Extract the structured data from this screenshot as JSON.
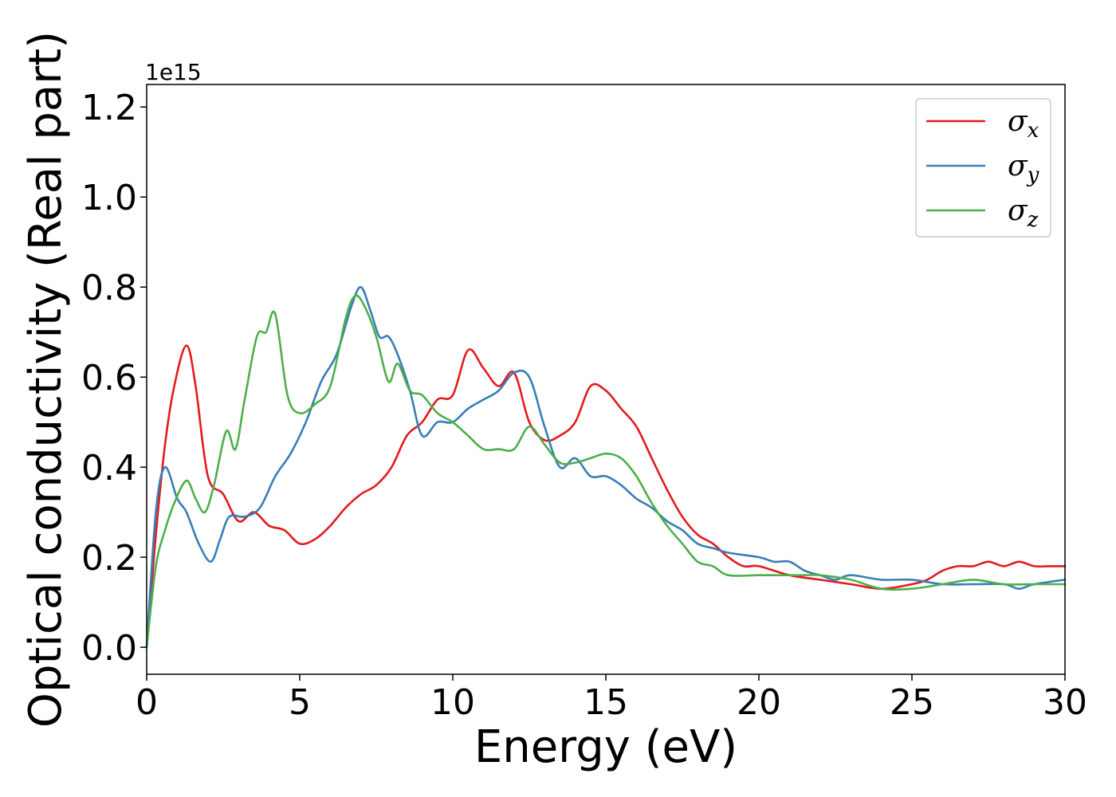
{
  "chart_data": {
    "type": "line",
    "xlabel": "Energy (eV)",
    "ylabel": "Optical conductivity (Real part)",
    "y_offset_label": "1e15",
    "xlim": [
      0,
      30
    ],
    "ylim": [
      -0.06,
      1.25
    ],
    "x_ticks": [
      0,
      5,
      10,
      15,
      20,
      25,
      30
    ],
    "x_tick_labels": [
      "0",
      "5",
      "10",
      "15",
      "20",
      "25",
      "30"
    ],
    "y_ticks": [
      0.0,
      0.2,
      0.4,
      0.6,
      0.8,
      1.0,
      1.2
    ],
    "y_tick_labels": [
      "0.0",
      "0.2",
      "0.4",
      "0.6",
      "0.8",
      "1.0",
      "1.2"
    ],
    "grid": false,
    "legend_position": "top-right",
    "series": [
      {
        "name": "σx",
        "symbol": "σ",
        "subscript": "x",
        "color": "#e41a1c",
        "x": [
          0,
          0.3,
          0.6,
          0.9,
          1.3,
          1.6,
          2.0,
          2.5,
          3.0,
          3.5,
          4.0,
          4.5,
          5.0,
          5.5,
          6.0,
          6.5,
          7.0,
          7.5,
          8.0,
          8.5,
          9.0,
          9.5,
          10.0,
          10.5,
          11.0,
          11.5,
          12.0,
          12.5,
          13.0,
          13.5,
          14.0,
          14.5,
          15.0,
          15.5,
          16.0,
          16.5,
          17.0,
          17.5,
          18.0,
          18.5,
          19.0,
          19.5,
          20.0,
          21.0,
          22.0,
          23.0,
          24.0,
          25.0,
          25.5,
          26.0,
          26.5,
          27.0,
          27.5,
          28.0,
          28.5,
          29.0,
          29.5,
          30.0
        ],
        "y": [
          0.0,
          0.25,
          0.45,
          0.58,
          0.67,
          0.58,
          0.38,
          0.34,
          0.28,
          0.3,
          0.27,
          0.26,
          0.23,
          0.24,
          0.27,
          0.31,
          0.34,
          0.36,
          0.4,
          0.47,
          0.5,
          0.55,
          0.56,
          0.66,
          0.62,
          0.58,
          0.61,
          0.5,
          0.46,
          0.47,
          0.5,
          0.58,
          0.57,
          0.53,
          0.49,
          0.42,
          0.35,
          0.29,
          0.25,
          0.23,
          0.2,
          0.18,
          0.18,
          0.16,
          0.15,
          0.14,
          0.13,
          0.14,
          0.15,
          0.17,
          0.18,
          0.18,
          0.19,
          0.18,
          0.19,
          0.18,
          0.18,
          0.18
        ]
      },
      {
        "name": "σy",
        "symbol": "σ",
        "subscript": "y",
        "color": "#377eb8",
        "x": [
          0,
          0.3,
          0.6,
          1.0,
          1.3,
          1.7,
          2.1,
          2.4,
          2.7,
          3.2,
          3.7,
          4.2,
          4.7,
          5.2,
          5.7,
          6.2,
          6.7,
          7.0,
          7.3,
          7.6,
          7.9,
          8.2,
          8.6,
          9.0,
          9.5,
          10.0,
          10.5,
          11.0,
          11.5,
          12.0,
          12.5,
          13.0,
          13.5,
          14.0,
          14.5,
          15.0,
          15.5,
          16.0,
          16.5,
          17.0,
          17.5,
          18.0,
          18.5,
          19.0,
          20.0,
          20.5,
          21.0,
          21.5,
          22.0,
          22.5,
          23.0,
          24.0,
          25.0,
          26.0,
          27.0,
          28.0,
          28.5,
          29.0,
          30.0
        ],
        "y": [
          0.0,
          0.3,
          0.4,
          0.33,
          0.3,
          0.23,
          0.19,
          0.24,
          0.29,
          0.29,
          0.31,
          0.38,
          0.43,
          0.5,
          0.59,
          0.65,
          0.76,
          0.8,
          0.75,
          0.69,
          0.69,
          0.65,
          0.57,
          0.47,
          0.5,
          0.5,
          0.53,
          0.55,
          0.57,
          0.61,
          0.6,
          0.49,
          0.4,
          0.42,
          0.38,
          0.38,
          0.36,
          0.33,
          0.31,
          0.28,
          0.26,
          0.23,
          0.22,
          0.21,
          0.2,
          0.19,
          0.19,
          0.17,
          0.16,
          0.15,
          0.16,
          0.15,
          0.15,
          0.14,
          0.14,
          0.14,
          0.13,
          0.14,
          0.15
        ]
      },
      {
        "name": "σz",
        "symbol": "σ",
        "subscript": "z",
        "color": "#4daf4a",
        "x": [
          0,
          0.3,
          0.6,
          0.9,
          1.3,
          1.6,
          1.9,
          2.2,
          2.6,
          2.9,
          3.2,
          3.6,
          3.9,
          4.2,
          4.6,
          5.0,
          5.5,
          6.0,
          6.5,
          6.8,
          7.1,
          7.5,
          7.9,
          8.2,
          8.6,
          9.0,
          9.5,
          10.0,
          10.5,
          11.0,
          11.5,
          12.0,
          12.5,
          13.0,
          13.5,
          14.0,
          14.5,
          15.0,
          15.5,
          16.0,
          16.5,
          17.0,
          17.5,
          18.0,
          18.5,
          19.0,
          20.0,
          21.0,
          21.5,
          22.0,
          23.0,
          24.0,
          25.0,
          26.0,
          27.0,
          28.0,
          29.0,
          30.0
        ],
        "y": [
          0.0,
          0.18,
          0.26,
          0.32,
          0.37,
          0.33,
          0.3,
          0.36,
          0.48,
          0.44,
          0.55,
          0.69,
          0.7,
          0.74,
          0.56,
          0.52,
          0.54,
          0.58,
          0.73,
          0.78,
          0.76,
          0.69,
          0.59,
          0.63,
          0.57,
          0.56,
          0.52,
          0.5,
          0.47,
          0.44,
          0.44,
          0.44,
          0.49,
          0.45,
          0.41,
          0.41,
          0.42,
          0.43,
          0.42,
          0.38,
          0.32,
          0.27,
          0.23,
          0.19,
          0.18,
          0.16,
          0.16,
          0.16,
          0.16,
          0.16,
          0.15,
          0.13,
          0.13,
          0.14,
          0.15,
          0.14,
          0.14,
          0.14
        ]
      }
    ]
  }
}
